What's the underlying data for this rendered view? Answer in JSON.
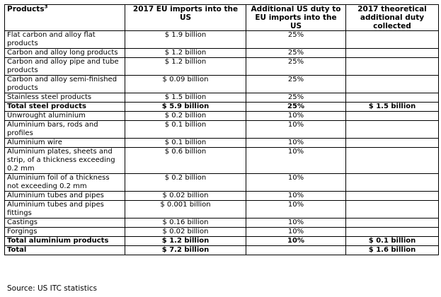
{
  "table": {
    "headers": {
      "products": "Products",
      "products_footnote": "3",
      "imports": "2017 EU imports into the US",
      "duty": "Additional US duty to EU imports into the US",
      "collected": "2017 theoretical additional duty collected"
    },
    "rows": [
      {
        "product": "Flat carbon and alloy flat products",
        "imports": "$ 1.9 billion",
        "duty": "25%",
        "collected": "",
        "bold": false
      },
      {
        "product": "Carbon and alloy long products",
        "imports": "$ 1.2 billion",
        "duty": "25%",
        "collected": "",
        "bold": false
      },
      {
        "product": "Carbon and alloy pipe and tube products",
        "imports": "$ 1.2 billion",
        "duty": "25%",
        "collected": "",
        "bold": false
      },
      {
        "product": "Carbon and alloy semi-finished products",
        "imports": "$ 0.09 billion",
        "duty": "25%",
        "collected": "",
        "bold": false
      },
      {
        "product": "Stainless steel products",
        "imports": "$ 1.5 billion",
        "duty": "25%",
        "collected": "",
        "bold": false
      },
      {
        "product": "Total steel products",
        "imports": "$ 5.9 billion",
        "duty": "25%",
        "collected": "$ 1.5 billion",
        "bold": true
      },
      {
        "product": "Unwrought aluminium",
        "imports": "$ 0.2 billion",
        "duty": "10%",
        "collected": "",
        "bold": false
      },
      {
        "product": "Aluminium bars, rods and profiles",
        "imports": "$ 0.1 billion",
        "duty": "10%",
        "collected": "",
        "bold": false
      },
      {
        "product": "Aluminium wire",
        "imports": "$ 0.1 billion",
        "duty": "10%",
        "collected": "",
        "bold": false
      },
      {
        "product": "Aluminium plates, sheets and strip, of a thickness exceeding 0.2 mm",
        "imports": "$ 0.6 billion",
        "duty": "10%",
        "collected": "",
        "bold": false
      },
      {
        "product": "Aluminium foil of a thickness not exceeding 0.2 mm",
        "imports": "$ 0.2 billion",
        "duty": "10%",
        "collected": "",
        "bold": false
      },
      {
        "product": "Aluminium tubes and pipes",
        "imports": "$ 0.02 billion",
        "duty": "10%",
        "collected": "",
        "bold": false
      },
      {
        "product": "Aluminium tubes and pipes fittings",
        "imports": "$ 0.001 billion",
        "duty": "10%",
        "collected": "",
        "bold": false
      },
      {
        "product": "Castings",
        "imports": "$ 0.16 billion",
        "duty": "10%",
        "collected": "",
        "bold": false
      },
      {
        "product": "Forgings",
        "imports": "$ 0.02 billion",
        "duty": "10%",
        "collected": "",
        "bold": false
      },
      {
        "product": "Total aluminium products",
        "imports": "$ 1.2 billion",
        "duty": "10%",
        "collected": "$ 0.1 billion",
        "bold": true
      },
      {
        "product": "Total",
        "imports": "$ 7.2 billion",
        "duty": "",
        "collected": "$ 1.6 billion",
        "bold": true
      }
    ]
  },
  "source": "Source: US ITC statistics"
}
